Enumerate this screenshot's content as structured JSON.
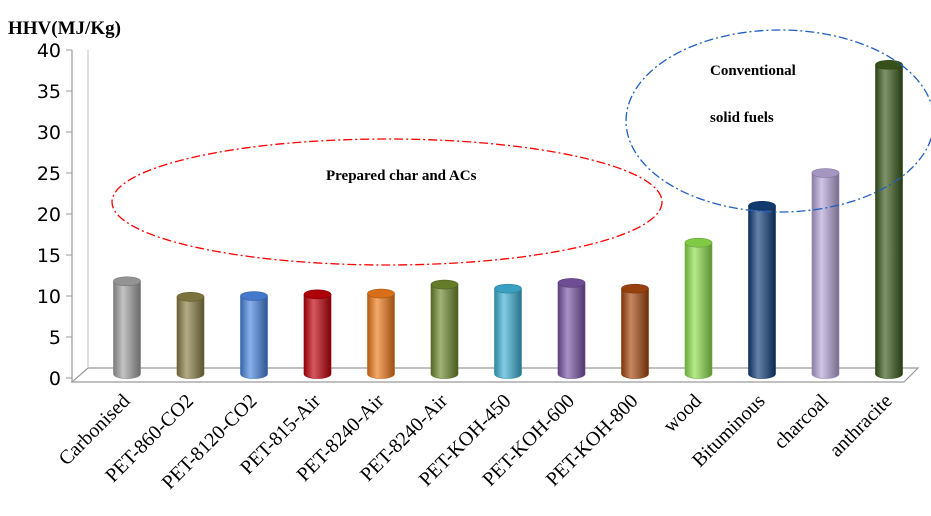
{
  "chart_data": {
    "type": "bar",
    "title": "",
    "ylabel": "HHV(MJ/Kg)",
    "xlabel": "",
    "ylim": [
      0,
      40
    ],
    "yticks": [
      0,
      5,
      10,
      15,
      20,
      25,
      30,
      35,
      40
    ],
    "grid": false,
    "style": "3d-cylinder",
    "categories": [
      "Carbonised",
      "PET-860-CO2",
      "PET-8120-CO2",
      "PET-815-Air",
      "PET-8240-Air",
      "PET-8240-Air",
      "PET-KOH-450",
      "PET-KOH-600",
      "PET-KOH-800",
      "wood",
      "Bituminous",
      "charcoal",
      "anthracite"
    ],
    "values": [
      11.8,
      9.9,
      10.0,
      10.2,
      10.3,
      11.4,
      10.9,
      11.6,
      10.9,
      16.5,
      21.0,
      25.0,
      38.2
    ],
    "colors": [
      "#a3a3a3",
      "#8a7f45",
      "#4a86e0",
      "#c0000a",
      "#f07a1a",
      "#6f8a2e",
      "#3fb2d6",
      "#7a55a6",
      "#a8480e",
      "#8fe04e",
      "#123f7a",
      "#b7a6d8",
      "#3c5a1c"
    ],
    "annotations": [
      {
        "text": "Prepared char and ACs",
        "color": "#ff0000"
      },
      {
        "text": "Conventional",
        "color": "#1f5fbf"
      },
      {
        "text": "solid fuels",
        "color": "#1f5fbf"
      }
    ]
  }
}
